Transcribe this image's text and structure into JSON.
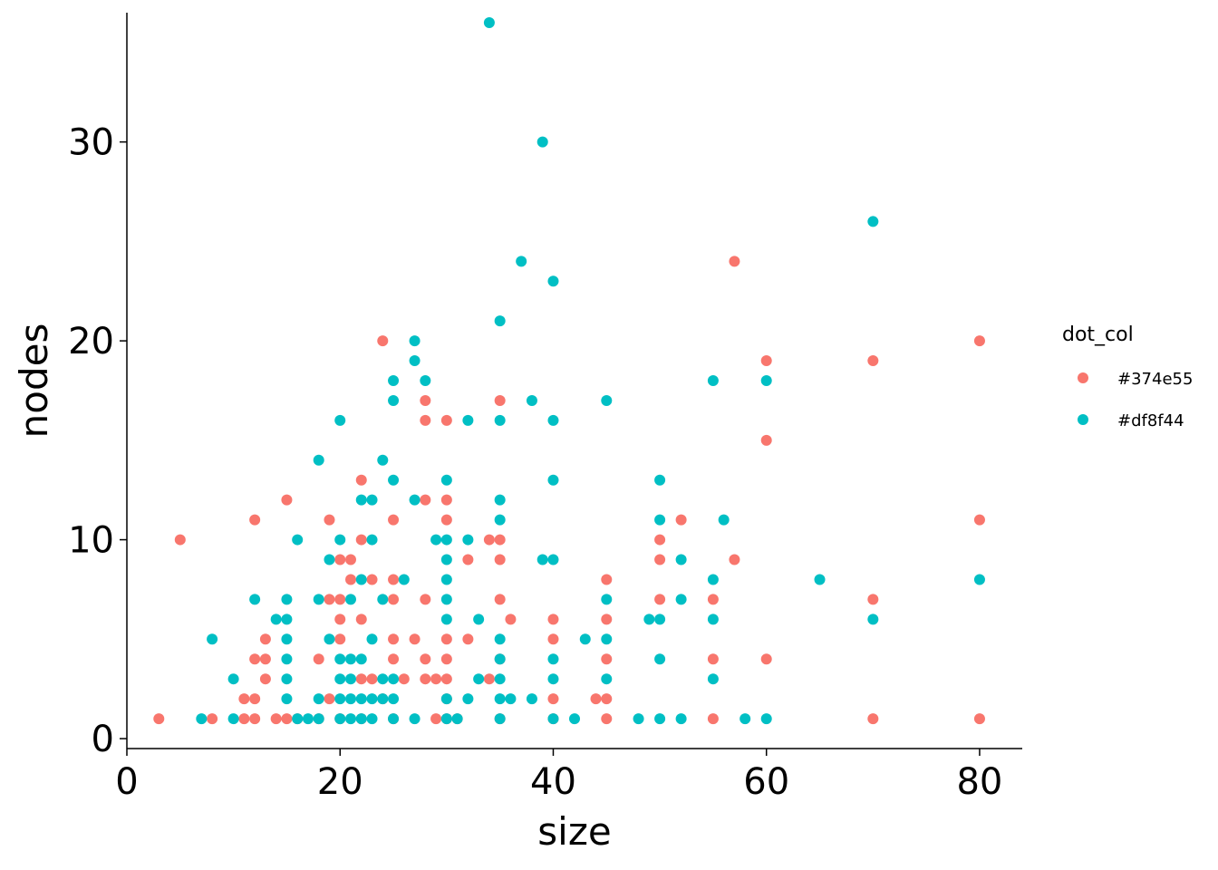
{
  "chart_data": {
    "type": "scatter",
    "xlabel": "size",
    "ylabel": "nodes",
    "xlim": [
      0,
      84
    ],
    "ylim": [
      -0.5,
      36.5
    ],
    "xticks": [
      0,
      20,
      40,
      60,
      80
    ],
    "xtick_labels": [
      "0",
      "20",
      "40",
      "60",
      "80"
    ],
    "yticks": [
      0,
      10,
      20,
      30
    ],
    "ytick_labels": [
      "0",
      "10",
      "20",
      "30"
    ],
    "grid": false,
    "legend": {
      "title": "dot_col",
      "position": "right",
      "entries": [
        {
          "label": "#374e55",
          "color": "#F8766D"
        },
        {
          "label": "#df8f44",
          "color": "#00BFC4"
        }
      ]
    },
    "series": [
      {
        "name": "#374e55",
        "color": "#F8766D",
        "points": [
          [
            3,
            1
          ],
          [
            5,
            10
          ],
          [
            8,
            1
          ],
          [
            11,
            1
          ],
          [
            11,
            2
          ],
          [
            12,
            1
          ],
          [
            12,
            2
          ],
          [
            12,
            4
          ],
          [
            12,
            11
          ],
          [
            13,
            3
          ],
          [
            13,
            4
          ],
          [
            13,
            5
          ],
          [
            14,
            1
          ],
          [
            15,
            1
          ],
          [
            15,
            12
          ],
          [
            16,
            1
          ],
          [
            18,
            1
          ],
          [
            18,
            4
          ],
          [
            19,
            2
          ],
          [
            19,
            7
          ],
          [
            19,
            11
          ],
          [
            20,
            1
          ],
          [
            20,
            5
          ],
          [
            20,
            6
          ],
          [
            20,
            7
          ],
          [
            20,
            9
          ],
          [
            21,
            8
          ],
          [
            21,
            9
          ],
          [
            22,
            10
          ],
          [
            22,
            13
          ],
          [
            22,
            3
          ],
          [
            22,
            6
          ],
          [
            22,
            1
          ],
          [
            23,
            3
          ],
          [
            23,
            8
          ],
          [
            24,
            2
          ],
          [
            24,
            20
          ],
          [
            25,
            1
          ],
          [
            25,
            4
          ],
          [
            25,
            5
          ],
          [
            25,
            7
          ],
          [
            25,
            8
          ],
          [
            25,
            11
          ],
          [
            26,
            3
          ],
          [
            27,
            5
          ],
          [
            28,
            3
          ],
          [
            28,
            4
          ],
          [
            28,
            7
          ],
          [
            28,
            12
          ],
          [
            28,
            16
          ],
          [
            28,
            17
          ],
          [
            29,
            1
          ],
          [
            29,
            3
          ],
          [
            30,
            1
          ],
          [
            30,
            2
          ],
          [
            30,
            3
          ],
          [
            30,
            4
          ],
          [
            30,
            5
          ],
          [
            30,
            11
          ],
          [
            30,
            12
          ],
          [
            30,
            16
          ],
          [
            31,
            1
          ],
          [
            32,
            5
          ],
          [
            32,
            9
          ],
          [
            34,
            3
          ],
          [
            34,
            10
          ],
          [
            35,
            1
          ],
          [
            35,
            4
          ],
          [
            35,
            7
          ],
          [
            35,
            9
          ],
          [
            35,
            10
          ],
          [
            35,
            17
          ],
          [
            36,
            6
          ],
          [
            40,
            1
          ],
          [
            40,
            2
          ],
          [
            40,
            5
          ],
          [
            40,
            6
          ],
          [
            44,
            2
          ],
          [
            45,
            1
          ],
          [
            45,
            2
          ],
          [
            45,
            4
          ],
          [
            45,
            6
          ],
          [
            45,
            8
          ],
          [
            50,
            7
          ],
          [
            50,
            9
          ],
          [
            50,
            10
          ],
          [
            52,
            11
          ],
          [
            55,
            1
          ],
          [
            55,
            4
          ],
          [
            55,
            7
          ],
          [
            57,
            9
          ],
          [
            57,
            24
          ],
          [
            60,
            4
          ],
          [
            60,
            15
          ],
          [
            60,
            19
          ],
          [
            70,
            1
          ],
          [
            70,
            7
          ],
          [
            70,
            19
          ],
          [
            80,
            1
          ],
          [
            80,
            11
          ],
          [
            80,
            20
          ]
        ]
      },
      {
        "name": "#df8f44",
        "color": "#00BFC4",
        "points": [
          [
            7,
            1
          ],
          [
            8,
            5
          ],
          [
            10,
            1
          ],
          [
            10,
            3
          ],
          [
            12,
            7
          ],
          [
            14,
            6
          ],
          [
            15,
            2
          ],
          [
            15,
            3
          ],
          [
            15,
            4
          ],
          [
            15,
            5
          ],
          [
            15,
            6
          ],
          [
            15,
            7
          ],
          [
            16,
            1
          ],
          [
            16,
            10
          ],
          [
            17,
            1
          ],
          [
            18,
            1
          ],
          [
            18,
            2
          ],
          [
            18,
            7
          ],
          [
            18,
            14
          ],
          [
            19,
            5
          ],
          [
            19,
            9
          ],
          [
            20,
            1
          ],
          [
            20,
            2
          ],
          [
            20,
            3
          ],
          [
            20,
            4
          ],
          [
            20,
            10
          ],
          [
            20,
            16
          ],
          [
            21,
            1
          ],
          [
            21,
            2
          ],
          [
            21,
            3
          ],
          [
            21,
            4
          ],
          [
            21,
            7
          ],
          [
            22,
            1
          ],
          [
            22,
            2
          ],
          [
            22,
            4
          ],
          [
            22,
            8
          ],
          [
            22,
            12
          ],
          [
            23,
            1
          ],
          [
            23,
            2
          ],
          [
            23,
            5
          ],
          [
            23,
            10
          ],
          [
            23,
            12
          ],
          [
            24,
            2
          ],
          [
            24,
            3
          ],
          [
            24,
            7
          ],
          [
            24,
            14
          ],
          [
            25,
            1
          ],
          [
            25,
            2
          ],
          [
            25,
            3
          ],
          [
            25,
            13
          ],
          [
            25,
            17
          ],
          [
            25,
            18
          ],
          [
            26,
            8
          ],
          [
            27,
            1
          ],
          [
            27,
            12
          ],
          [
            27,
            19
          ],
          [
            27,
            20
          ],
          [
            28,
            18
          ],
          [
            29,
            10
          ],
          [
            30,
            1
          ],
          [
            30,
            2
          ],
          [
            30,
            6
          ],
          [
            30,
            7
          ],
          [
            30,
            8
          ],
          [
            30,
            9
          ],
          [
            30,
            10
          ],
          [
            30,
            13
          ],
          [
            31,
            1
          ],
          [
            32,
            2
          ],
          [
            32,
            10
          ],
          [
            32,
            16
          ],
          [
            33,
            3
          ],
          [
            33,
            6
          ],
          [
            34,
            36
          ],
          [
            35,
            1
          ],
          [
            35,
            2
          ],
          [
            35,
            3
          ],
          [
            35,
            4
          ],
          [
            35,
            5
          ],
          [
            35,
            11
          ],
          [
            35,
            12
          ],
          [
            35,
            16
          ],
          [
            35,
            21
          ],
          [
            36,
            2
          ],
          [
            37,
            24
          ],
          [
            38,
            2
          ],
          [
            38,
            17
          ],
          [
            39,
            9
          ],
          [
            39,
            30
          ],
          [
            40,
            1
          ],
          [
            40,
            3
          ],
          [
            40,
            4
          ],
          [
            40,
            9
          ],
          [
            40,
            13
          ],
          [
            40,
            16
          ],
          [
            40,
            23
          ],
          [
            42,
            1
          ],
          [
            43,
            5
          ],
          [
            45,
            3
          ],
          [
            45,
            5
          ],
          [
            45,
            7
          ],
          [
            45,
            17
          ],
          [
            48,
            1
          ],
          [
            49,
            6
          ],
          [
            50,
            1
          ],
          [
            50,
            4
          ],
          [
            50,
            6
          ],
          [
            50,
            11
          ],
          [
            50,
            13
          ],
          [
            52,
            1
          ],
          [
            52,
            7
          ],
          [
            52,
            9
          ],
          [
            55,
            3
          ],
          [
            55,
            6
          ],
          [
            55,
            8
          ],
          [
            55,
            18
          ],
          [
            56,
            11
          ],
          [
            58,
            1
          ],
          [
            60,
            1
          ],
          [
            60,
            18
          ],
          [
            65,
            8
          ],
          [
            70,
            6
          ],
          [
            70,
            26
          ],
          [
            80,
            8
          ]
        ]
      }
    ]
  }
}
